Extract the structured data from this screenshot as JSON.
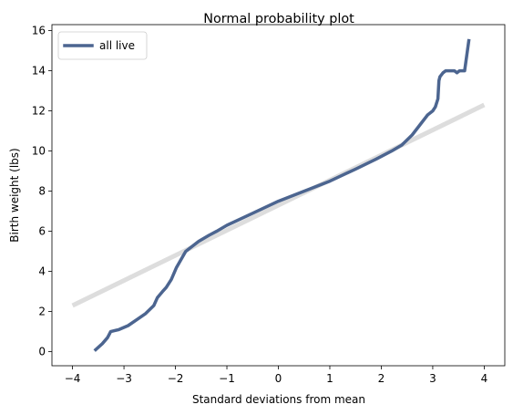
{
  "chart_data": {
    "type": "line",
    "title": "Normal probability plot",
    "xlabel": "Standard deviations from mean",
    "ylabel": "Birth weight (lbs)",
    "xlim": [
      -4.4,
      4.4
    ],
    "ylim": [
      -0.7,
      16.3
    ],
    "xticks": [
      -4,
      -3,
      -2,
      -1,
      0,
      1,
      2,
      3,
      4
    ],
    "yticks": [
      0,
      2,
      4,
      6,
      8,
      10,
      12,
      14,
      16
    ],
    "grid": false,
    "legend": {
      "placement": "upper-left"
    },
    "series": [
      {
        "name": "all live",
        "role": "data",
        "color": "#4c6590",
        "x": [
          -3.55,
          -3.42,
          -3.32,
          -3.28,
          -3.26,
          -3.1,
          -2.92,
          -2.75,
          -2.58,
          -2.42,
          -2.35,
          -2.25,
          -2.18,
          -2.08,
          -1.98,
          -1.8,
          -1.55,
          -1.35,
          -1.2,
          -1.0,
          -0.5,
          0.0,
          0.5,
          1.0,
          1.5,
          1.9,
          2.2,
          2.4,
          2.6,
          2.75,
          2.9,
          3.0,
          3.05,
          3.1,
          3.12,
          3.14,
          3.2,
          3.25,
          3.42,
          3.47,
          3.52,
          3.55,
          3.62,
          3.7
        ],
        "y": [
          0.1,
          0.4,
          0.7,
          0.9,
          1.0,
          1.1,
          1.3,
          1.6,
          1.9,
          2.3,
          2.7,
          3.0,
          3.2,
          3.6,
          4.2,
          5.0,
          5.5,
          5.8,
          6.0,
          6.3,
          6.9,
          7.5,
          8.0,
          8.5,
          9.1,
          9.6,
          10.0,
          10.3,
          10.8,
          11.3,
          11.8,
          12.0,
          12.2,
          12.6,
          13.5,
          13.7,
          13.9,
          14.0,
          14.0,
          13.9,
          14.0,
          14.0,
          14.0,
          15.5
        ]
      },
      {
        "role": "reference",
        "color": "#dddddd",
        "x": [
          -4,
          4
        ],
        "y": [
          2.3,
          12.3
        ]
      }
    ]
  }
}
